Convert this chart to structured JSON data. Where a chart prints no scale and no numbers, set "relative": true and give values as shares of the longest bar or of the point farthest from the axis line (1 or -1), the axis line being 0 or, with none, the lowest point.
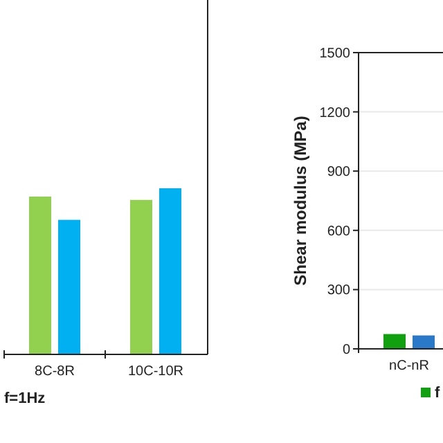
{
  "chart_data": [
    {
      "type": "bar",
      "categories": [
        "8C-8R",
        "10C-10R"
      ],
      "relative": true,
      "series": [
        {
          "color": "#92d050",
          "values": [
            0.95,
            0.93
          ]
        },
        {
          "color": "#00b0f0",
          "values": [
            0.81,
            1
          ]
        }
      ],
      "annotations": [
        "f=1Hz"
      ]
    },
    {
      "type": "bar",
      "categories": [
        "nC-nR"
      ],
      "ylabel": "Shear modulus (MPa)",
      "ylim": [
        0,
        1500
      ],
      "yticks": [
        0,
        300,
        600,
        900,
        1200,
        1500
      ],
      "grid": "y",
      "legend": "bottom",
      "series": [
        {
          "name": "f",
          "color": "#10a010",
          "values": [
            75
          ]
        },
        {
          "color": "#2a78c8",
          "values": [
            68
          ]
        }
      ]
    }
  ]
}
